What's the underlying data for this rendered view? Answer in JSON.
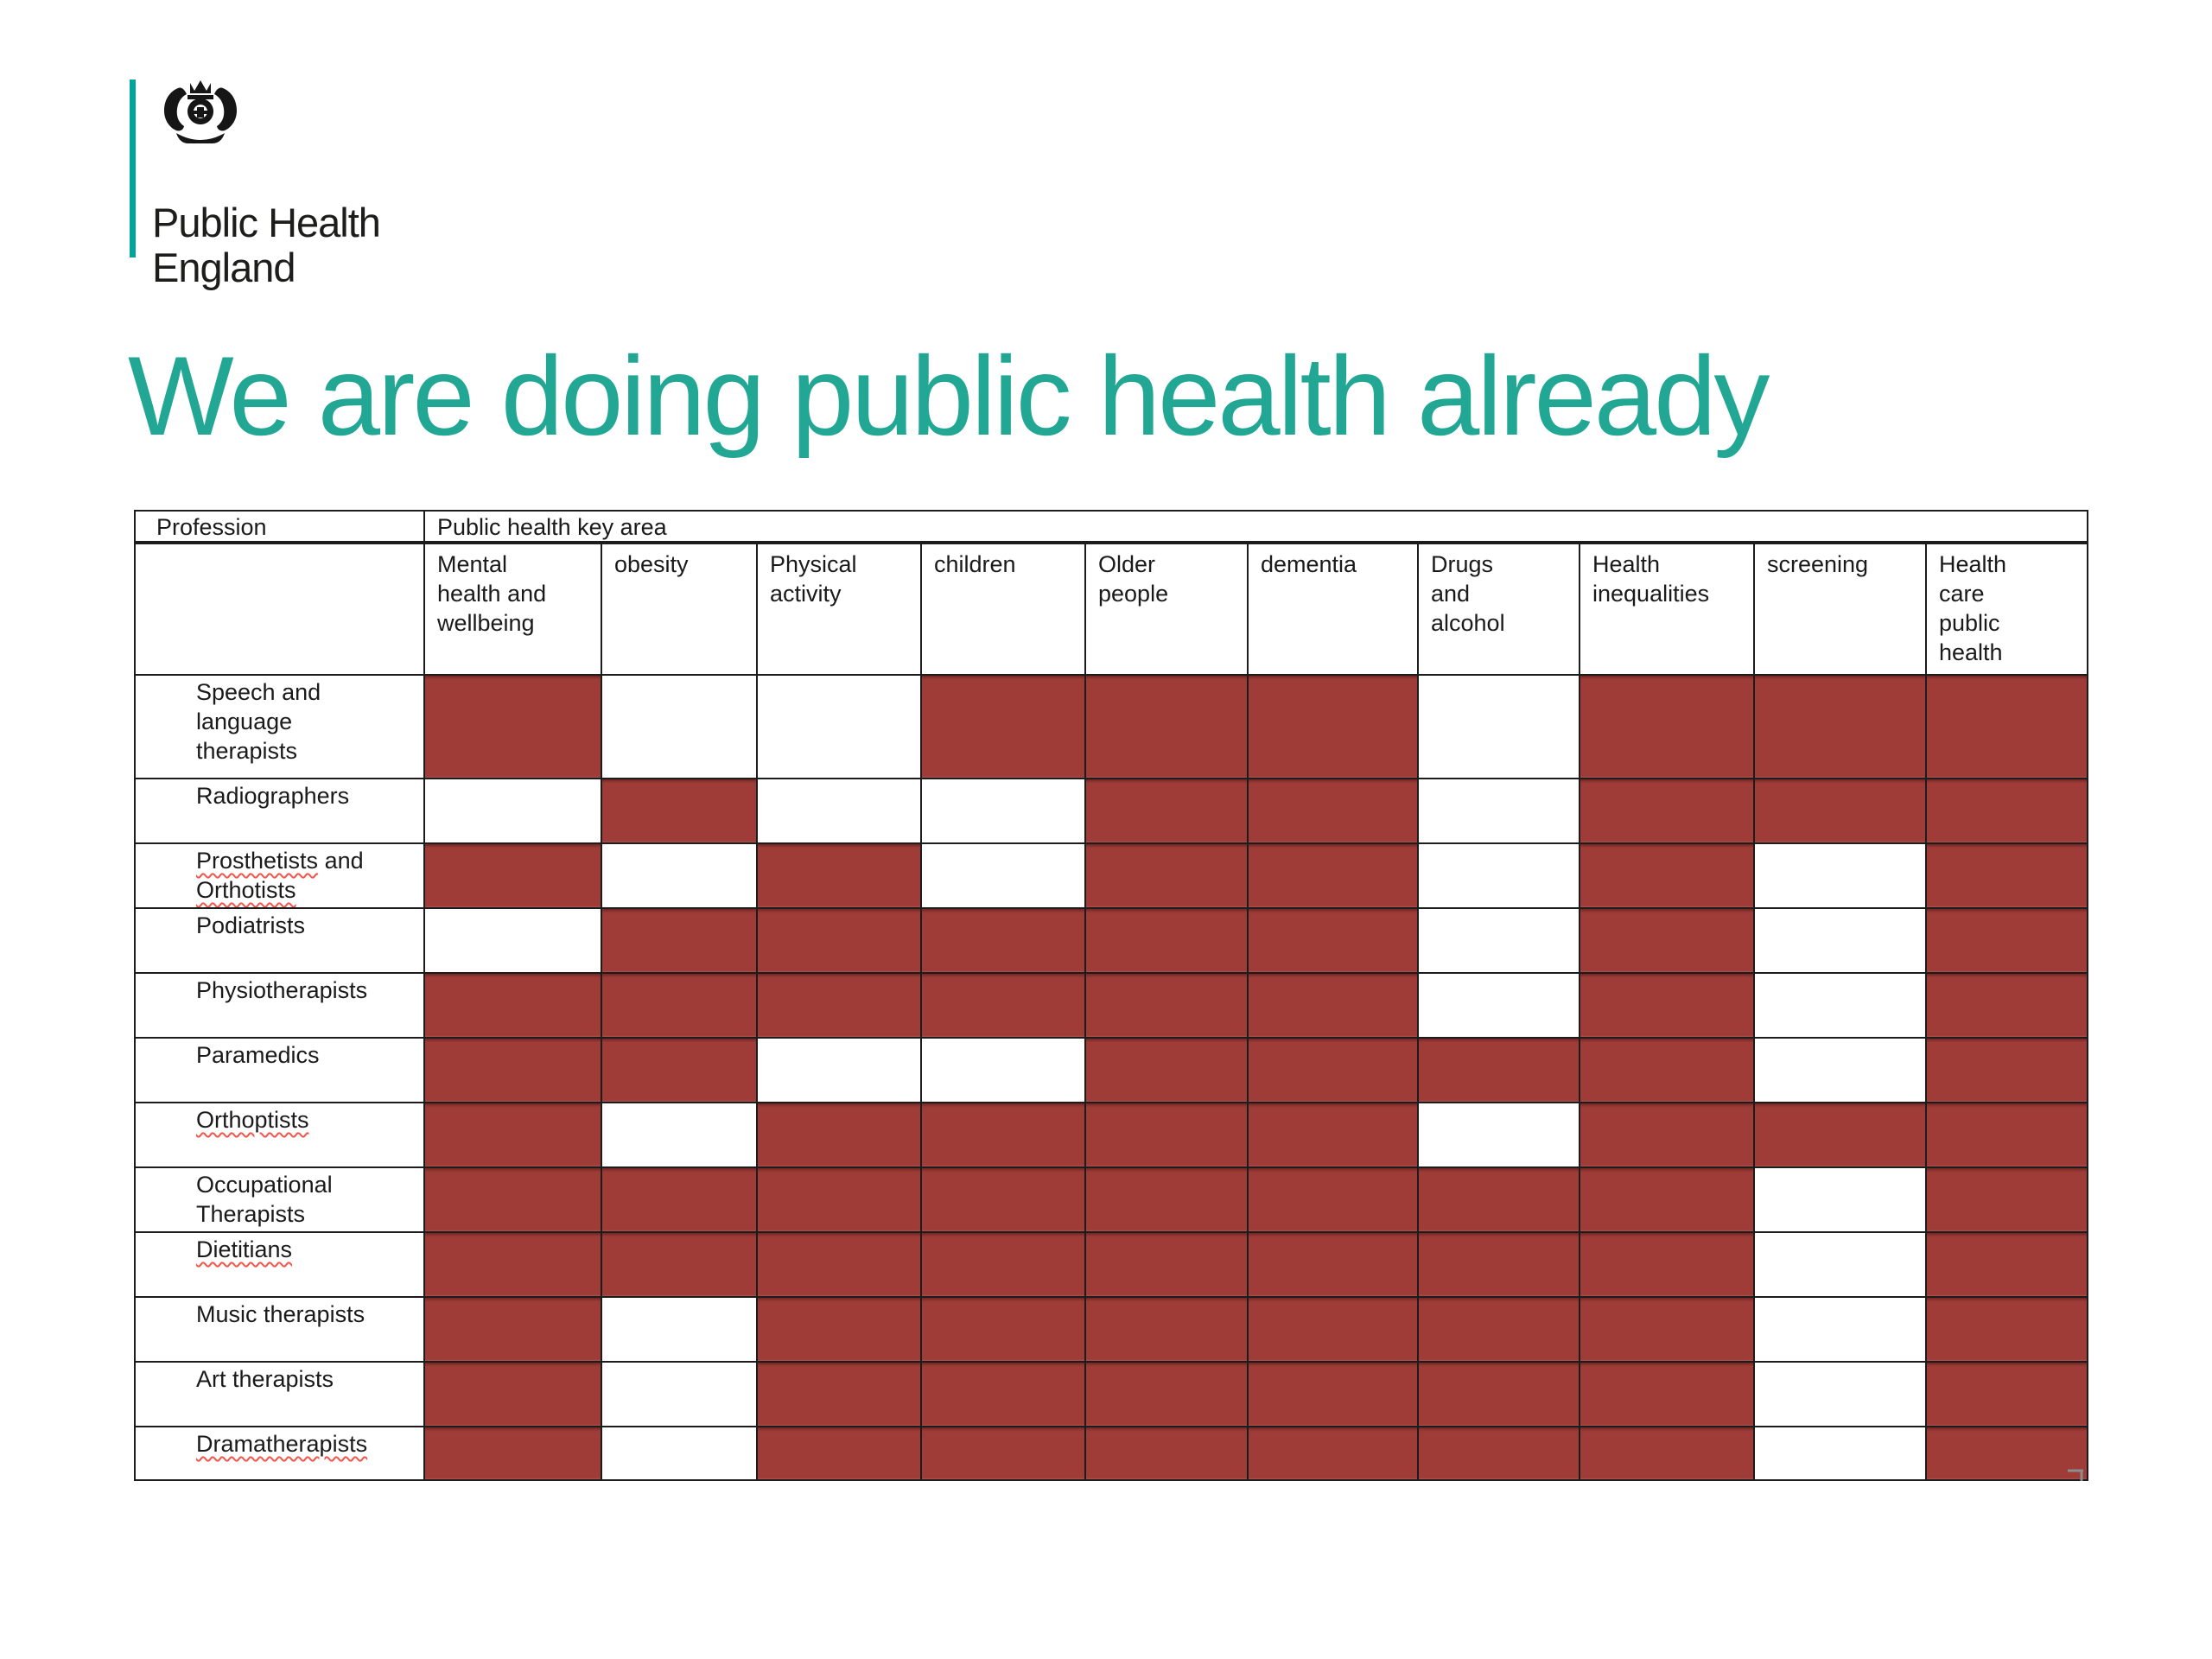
{
  "logo": {
    "line1": "Public Health",
    "line2": "England",
    "crest_icon": "royal-coat-of-arms",
    "bar_color": "#00a49a"
  },
  "title": {
    "text": "We are doing public health already",
    "color": "#23a795"
  },
  "table": {
    "corner_header": "Profession",
    "group_header": "Public health key area",
    "columns": [
      "Mental health and wellbeing",
      "obesity",
      "Physical activity",
      "children",
      "Older people",
      "dementia",
      "Drugs and alcohol",
      "Health inequalities",
      "screening",
      "Health care public health"
    ],
    "filled_color": "#9f3c38",
    "rows": [
      {
        "profession": "Speech and language therapists",
        "spellcheck_underline": false,
        "areas": [
          1,
          0,
          0,
          1,
          1,
          1,
          0,
          1,
          1,
          1
        ]
      },
      {
        "profession": "Radiographers",
        "spellcheck_underline": false,
        "areas": [
          0,
          1,
          0,
          0,
          1,
          1,
          0,
          1,
          1,
          1
        ]
      },
      {
        "profession": "Prosthetists and Orthotists",
        "spellcheck_underline": true,
        "parts": [
          {
            "text": "Prosthetists",
            "squiggle": true
          },
          {
            "text": " and ",
            "squiggle": false
          },
          {
            "text": "Orthotists",
            "squiggle": true
          }
        ],
        "areas": [
          1,
          0,
          1,
          0,
          1,
          1,
          0,
          1,
          0,
          1
        ]
      },
      {
        "profession": "Podiatrists",
        "spellcheck_underline": false,
        "areas": [
          0,
          1,
          1,
          1,
          1,
          1,
          0,
          1,
          0,
          1
        ]
      },
      {
        "profession": "Physiotherapists",
        "spellcheck_underline": false,
        "areas": [
          1,
          1,
          1,
          1,
          1,
          1,
          0,
          1,
          0,
          1
        ]
      },
      {
        "profession": "Paramedics",
        "spellcheck_underline": false,
        "areas": [
          1,
          1,
          0,
          0,
          1,
          1,
          1,
          1,
          0,
          1
        ]
      },
      {
        "profession": "Orthoptists",
        "spellcheck_underline": true,
        "areas": [
          1,
          0,
          1,
          1,
          1,
          1,
          0,
          1,
          1,
          1
        ]
      },
      {
        "profession": "Occupational Therapists",
        "spellcheck_underline": false,
        "areas": [
          1,
          1,
          1,
          1,
          1,
          1,
          1,
          1,
          0,
          1
        ]
      },
      {
        "profession": "Dietitians",
        "spellcheck_underline": true,
        "areas": [
          1,
          1,
          1,
          1,
          1,
          1,
          1,
          1,
          0,
          1
        ]
      },
      {
        "profession": "Music therapists",
        "spellcheck_underline": false,
        "areas": [
          1,
          0,
          1,
          1,
          1,
          1,
          1,
          1,
          0,
          1
        ]
      },
      {
        "profession": "Art therapists",
        "spellcheck_underline": false,
        "areas": [
          1,
          0,
          1,
          1,
          1,
          1,
          1,
          1,
          0,
          1
        ]
      },
      {
        "profession": "Dramatherapists",
        "spellcheck_underline": true,
        "areas": [
          1,
          0,
          1,
          1,
          1,
          1,
          1,
          1,
          0,
          1
        ]
      }
    ]
  },
  "artifacts": {
    "corner_mark_glyph": "¬"
  }
}
